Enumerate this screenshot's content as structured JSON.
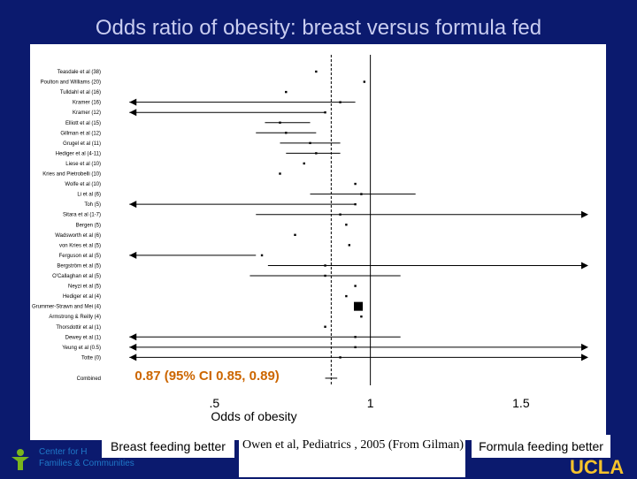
{
  "title": "Odds ratio of obesity: breast versus formula fed",
  "chart_data": {
    "type": "forest",
    "xlabel": "Odds of obesity",
    "x_ticks": [
      ".5",
      "1",
      "1.5"
    ],
    "xlim": [
      0.12,
      1.75
    ],
    "reference_line": 1,
    "combined_reference_line": 0.87,
    "studies": [
      {
        "label": "Teasdale et al (38)",
        "or": 0.82
      },
      {
        "label": "Poulton and Williams (20)",
        "or": 0.98
      },
      {
        "label": "Tulldahl et al (16)",
        "or": 0.72
      },
      {
        "label": "Kramer (16)",
        "or": 0.9,
        "lo": 0.2,
        "hi": 0.95
      },
      {
        "label": "Kramer (12)",
        "or": 0.85,
        "lo": 0.2,
        "hi": 0.85
      },
      {
        "label": "Elliott et al (15)",
        "or": 0.7,
        "lo": 0.65,
        "hi": 0.8
      },
      {
        "label": "Gillman et al (12)",
        "or": 0.72,
        "lo": 0.62,
        "hi": 0.82
      },
      {
        "label": "Grugel et al (11)",
        "or": 0.8,
        "lo": 0.7,
        "hi": 0.9
      },
      {
        "label": "Hediger et al (4-11)",
        "or": 0.82,
        "lo": 0.72,
        "hi": 0.9
      },
      {
        "label": "Liese et al (10)",
        "or": 0.78
      },
      {
        "label": "Kries and Pietrobelli (10)",
        "or": 0.7
      },
      {
        "label": "Wolfe et al (10)",
        "or": 0.95
      },
      {
        "label": "Li et al (6)",
        "or": 0.97,
        "lo": 0.8,
        "hi": 1.15
      },
      {
        "label": "Toh (5)",
        "or": 0.95,
        "lo": 0.2,
        "hi": 0.95
      },
      {
        "label": "Sitara et al (1-7)",
        "or": 0.9,
        "lo": 0.62,
        "hi": 1.7
      },
      {
        "label": "Bergen (5)",
        "or": 0.92
      },
      {
        "label": "Wadsworth et al (6)",
        "or": 0.75
      },
      {
        "label": "von Kries et al (5)",
        "or": 0.93
      },
      {
        "label": "Ferguson et al (5)",
        "or": 0.64,
        "lo": 0.2,
        "hi": 0.62
      },
      {
        "label": "Bergström et al (5)",
        "or": 0.85,
        "lo": 0.66,
        "hi": 1.7
      },
      {
        "label": "O'Callaghan et al (5)",
        "or": 0.85,
        "lo": 0.6,
        "hi": 1.1
      },
      {
        "label": "Neyzi et al (5)",
        "or": 0.95
      },
      {
        "label": "Hediger et al (4)",
        "or": 0.92
      },
      {
        "label": "Grummer-Strawn and Mei (4)",
        "or": 0.96
      },
      {
        "label": "Armstrong & Reilly (4)",
        "or": 0.97
      },
      {
        "label": "Thorsdottir et al (1)",
        "or": 0.85
      },
      {
        "label": "Dewey et al (1)",
        "or": 0.95,
        "lo": 0.2,
        "hi": 1.1
      },
      {
        "label": "Yeung et al (0.5)",
        "or": 0.95,
        "lo": 0.2,
        "hi": 1.7
      },
      {
        "label": "Totte (0)",
        "or": 0.9,
        "lo": 0.2,
        "hi": 1.7
      }
    ],
    "combined": {
      "label": "Combined",
      "or": 0.87,
      "lo": 0.85,
      "hi": 0.89,
      "text": "0.87 (95% CI 0.85, 0.89)"
    },
    "annotation_left": "Breast feeding better",
    "annotation_right": "Formula feeding better",
    "citation": "Owen et al, Pediatrics , 2005 (From Gilman)"
  },
  "footer": {
    "center_logo_line1": "Center for H",
    "center_logo_line2": "Families & Communities",
    "ucla_logo": "UCLA"
  },
  "colors": {
    "background": "#0b1a6e",
    "title": "#c9cdf0",
    "combined_text": "#cc6600"
  }
}
